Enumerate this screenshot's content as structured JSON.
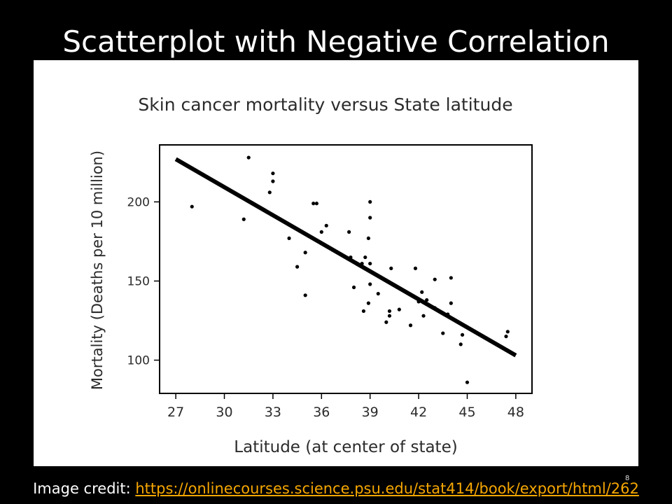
{
  "slide": {
    "title": "Scatterplot with Negative Correlation",
    "credit_label": "Image credit:",
    "credit_url": "https://onlinecourses.science.psu.edu/stat414/book/export/html/262",
    "page_number": "8"
  },
  "chart_data": {
    "type": "scatter",
    "title": "Skin cancer mortality versus State latitude",
    "xlabel": "Latitude (at center of state)",
    "ylabel": "Mortality (Deaths per 10 million)",
    "xlim": [
      26,
      49
    ],
    "ylim": [
      79,
      236
    ],
    "x_ticks": [
      27,
      30,
      33,
      36,
      39,
      42,
      45,
      48
    ],
    "y_ticks": [
      100,
      150,
      200
    ],
    "grid": false,
    "colors": {
      "points": "#000000",
      "line": "#000000",
      "frame": "#000000"
    },
    "regression_line": {
      "x": [
        27,
        48
      ],
      "y": [
        227,
        103
      ]
    },
    "points": [
      {
        "x": 28.0,
        "y": 197
      },
      {
        "x": 31.2,
        "y": 189
      },
      {
        "x": 31.5,
        "y": 228
      },
      {
        "x": 32.8,
        "y": 206
      },
      {
        "x": 33.0,
        "y": 218
      },
      {
        "x": 33.0,
        "y": 213
      },
      {
        "x": 34.0,
        "y": 177
      },
      {
        "x": 34.5,
        "y": 159
      },
      {
        "x": 35.0,
        "y": 168
      },
      {
        "x": 35.0,
        "y": 141
      },
      {
        "x": 35.5,
        "y": 199
      },
      {
        "x": 35.7,
        "y": 199
      },
      {
        "x": 36.0,
        "y": 181
      },
      {
        "x": 36.3,
        "y": 185
      },
      {
        "x": 37.7,
        "y": 181
      },
      {
        "x": 37.8,
        "y": 165
      },
      {
        "x": 38.0,
        "y": 146
      },
      {
        "x": 38.5,
        "y": 161
      },
      {
        "x": 38.7,
        "y": 165
      },
      {
        "x": 38.6,
        "y": 131
      },
      {
        "x": 38.9,
        "y": 136
      },
      {
        "x": 38.9,
        "y": 177
      },
      {
        "x": 39.0,
        "y": 200
      },
      {
        "x": 39.0,
        "y": 190
      },
      {
        "x": 39.0,
        "y": 161
      },
      {
        "x": 39.0,
        "y": 148
      },
      {
        "x": 39.5,
        "y": 142
      },
      {
        "x": 40.0,
        "y": 124
      },
      {
        "x": 40.2,
        "y": 131
      },
      {
        "x": 40.2,
        "y": 128
      },
      {
        "x": 40.3,
        "y": 158
      },
      {
        "x": 40.8,
        "y": 132
      },
      {
        "x": 41.5,
        "y": 122
      },
      {
        "x": 41.8,
        "y": 158
      },
      {
        "x": 42.0,
        "y": 137
      },
      {
        "x": 42.2,
        "y": 143
      },
      {
        "x": 42.3,
        "y": 128
      },
      {
        "x": 42.5,
        "y": 138
      },
      {
        "x": 43.0,
        "y": 151
      },
      {
        "x": 43.0,
        "y": 133
      },
      {
        "x": 43.5,
        "y": 117
      },
      {
        "x": 43.8,
        "y": 129
      },
      {
        "x": 44.0,
        "y": 152
      },
      {
        "x": 44.0,
        "y": 136
      },
      {
        "x": 44.6,
        "y": 110
      },
      {
        "x": 44.7,
        "y": 116
      },
      {
        "x": 45.0,
        "y": 86
      },
      {
        "x": 47.4,
        "y": 115
      },
      {
        "x": 47.5,
        "y": 118
      }
    ]
  }
}
